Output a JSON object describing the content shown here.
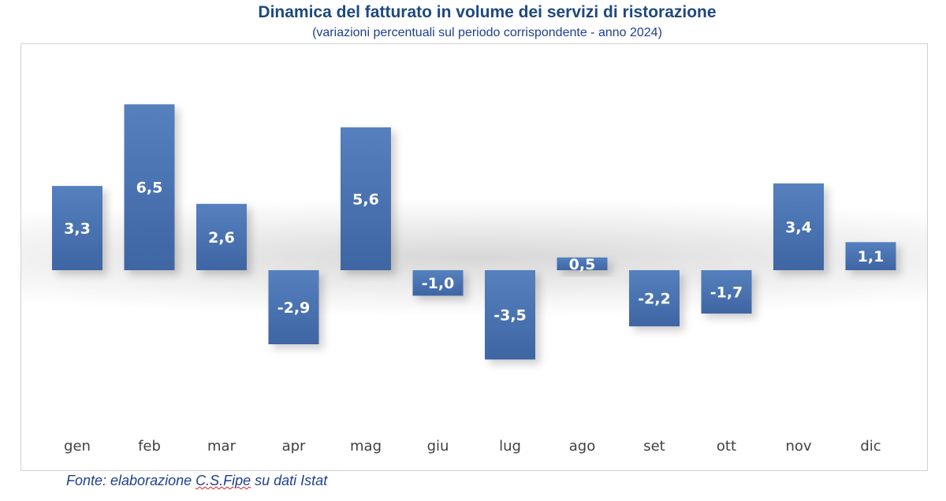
{
  "chart_data": {
    "type": "bar",
    "title": "Dinamica del fatturato in volume dei servizi di ristorazione",
    "subtitle": "(variazioni percentuali sul periodo corrispondente - anno 2024)",
    "categories": [
      "gen",
      "feb",
      "mar",
      "apr",
      "mag",
      "giu",
      "lug",
      "ago",
      "set",
      "ott",
      "nov",
      "dic"
    ],
    "values": [
      3.3,
      6.5,
      2.6,
      -2.9,
      5.6,
      -1.0,
      -3.5,
      0.5,
      -2.2,
      -1.7,
      3.4,
      1.1
    ],
    "data_labels": [
      "3,3",
      "6,5",
      "2,6",
      "-2,9",
      "5,6",
      "-1,0",
      "-3,5",
      "0,5",
      "-2,2",
      "-1,7",
      "3,4",
      "1,1"
    ],
    "xlabel": "",
    "ylabel": "",
    "grid": false,
    "legend": "none",
    "bar_color": "#4a72b0"
  },
  "source": {
    "prefix": "Fonte: elaborazione ",
    "org": "C.S.Fipe",
    "suffix": " su dati Istat"
  }
}
